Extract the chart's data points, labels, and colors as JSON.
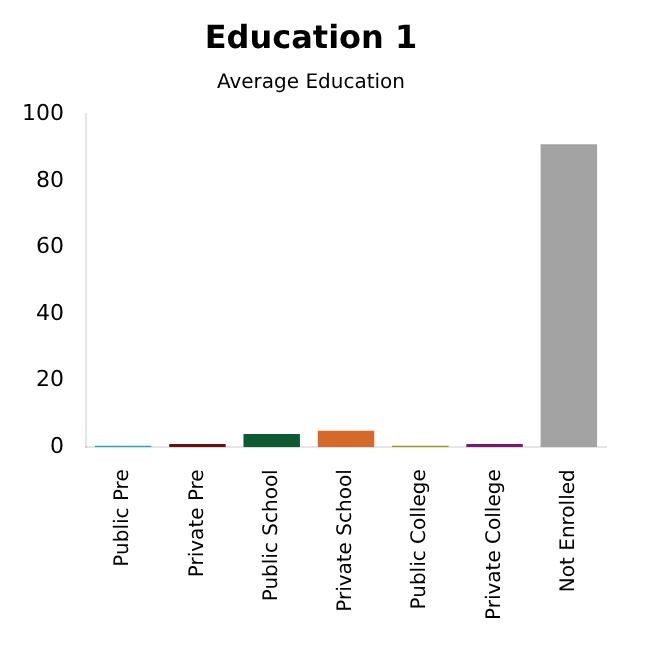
{
  "chart_data": {
    "type": "bar",
    "title": "Education 1",
    "subtitle": "Average Education",
    "categories": [
      "Public Pre",
      "Private Pre",
      "Public School",
      "Private School",
      "Public College",
      "Private College",
      "Not Enrolled"
    ],
    "values": [
      0.5,
      1,
      4,
      5,
      0.5,
      1,
      91
    ],
    "colors": [
      "#1aa9c4",
      "#6b0f0f",
      "#0d5a30",
      "#d4692a",
      "#9a9a1a",
      "#7a1a6e",
      "#a3a3a3"
    ],
    "ylim": [
      0,
      100
    ],
    "yticks": [
      0,
      20,
      40,
      60,
      80,
      100
    ],
    "grid": false,
    "legend": false
  }
}
